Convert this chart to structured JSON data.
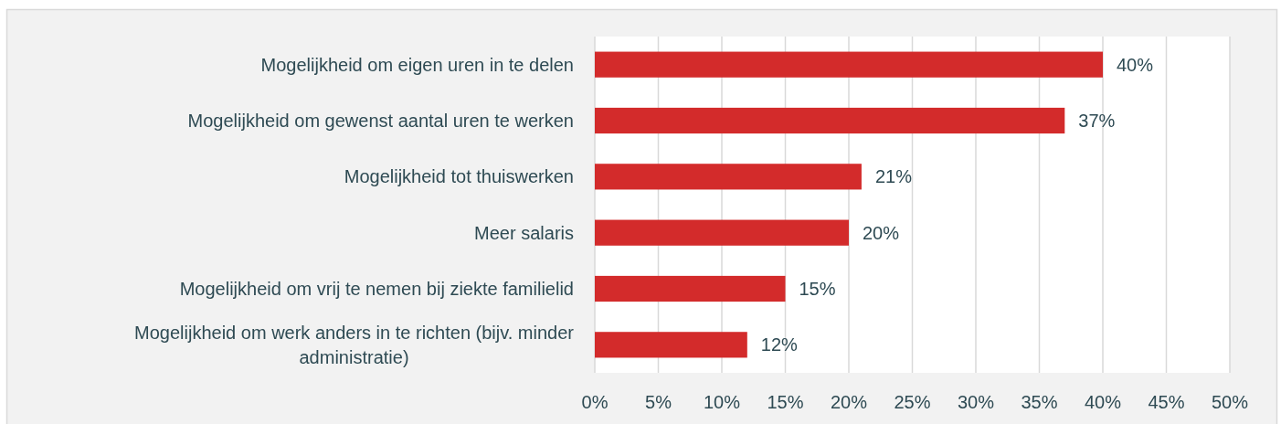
{
  "chart_data": {
    "type": "bar",
    "orientation": "horizontal",
    "categories": [
      "Mogelijkheid om eigen uren in te delen",
      "Mogelijkheid om gewenst aantal uren te werken",
      "Mogelijkheid tot thuiswerken",
      "Meer salaris",
      "Mogelijkheid om vrij te nemen bij ziekte familielid",
      "Mogelijkheid om werk anders in te richten (bijv. minder administratie)"
    ],
    "values": [
      40,
      37,
      21,
      20,
      15,
      12
    ],
    "value_labels": [
      "40%",
      "37%",
      "21%",
      "20%",
      "15%",
      "12%"
    ],
    "color": "#d32b2b",
    "xlim": [
      0,
      50
    ],
    "xticks": [
      {
        "value": 0,
        "label": "0%"
      },
      {
        "value": 5,
        "label": "5%"
      },
      {
        "value": 10,
        "label": "10%"
      },
      {
        "value": 15,
        "label": "15%"
      },
      {
        "value": 20,
        "label": "20%"
      },
      {
        "value": 25,
        "label": "25%"
      },
      {
        "value": 30,
        "label": "30%"
      },
      {
        "value": 35,
        "label": "35%"
      },
      {
        "value": 40,
        "label": "40%"
      },
      {
        "value": 45,
        "label": "45%"
      },
      {
        "value": 50,
        "label": "50%"
      }
    ],
    "grid": "x"
  }
}
